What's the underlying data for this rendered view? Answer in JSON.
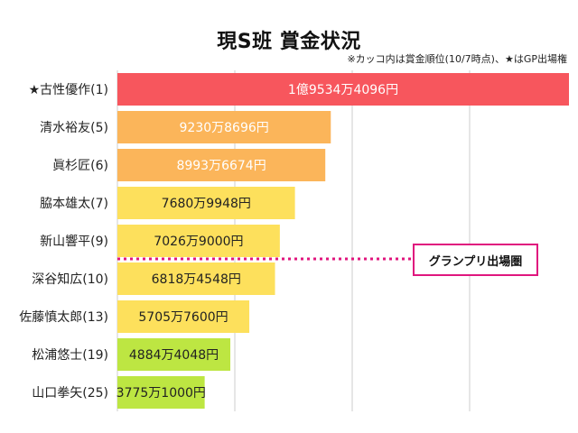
{
  "title": "現S班 賞金状況",
  "note": "※カッコ内は賞金順位(10/7時点)、★はGP出場権",
  "callout": "グランプリ出場圏",
  "colors": {
    "top": "#f7565d",
    "orange": "#fbb55a",
    "yellow": "#fde05c",
    "green": "#bde642",
    "cutoff_line": "#e0167e",
    "grid": "#cccccc"
  },
  "chart_data": {
    "type": "bar",
    "orientation": "horizontal",
    "categories": [
      "★古性優作(1)",
      "清水裕友(5)",
      "眞杉匠(6)",
      "脇本雄太(7)",
      "新山響平(9)",
      "深谷知広(10)",
      "佐藤慎太郎(13)",
      "松浦悠士(19)",
      "山口拳矢(25)"
    ],
    "values": [
      195344096,
      92308696,
      89936674,
      76809948,
      70269000,
      68184548,
      57057600,
      48844048,
      37751000
    ],
    "value_labels": [
      "1億9534万4096円",
      "9230万8696円",
      "8993万6674円",
      "7680万9948円",
      "7026万9000円",
      "6818万4548円",
      "5705万7600円",
      "4884万4048円",
      "3775万1000円"
    ],
    "bar_colors": [
      "#f7565d",
      "#fbb55a",
      "#fbb55a",
      "#fde05c",
      "#fde05c",
      "#fde05c",
      "#fde05c",
      "#bde642",
      "#bde642"
    ],
    "xlim": [
      0,
      195344096
    ],
    "grid": true,
    "cutoff_after_index": 4
  }
}
